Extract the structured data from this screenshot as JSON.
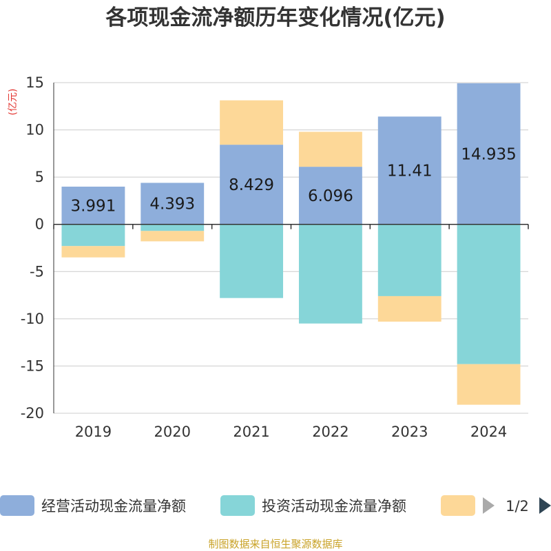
{
  "chart_data": {
    "type": "bar",
    "stacked": true,
    "title": "各项现金流净额历年变化情况(亿元)",
    "ylabel": "(亿元)",
    "xlabel": "",
    "categories": [
      "2019",
      "2020",
      "2021",
      "2022",
      "2023",
      "2024"
    ],
    "ylim": [
      -20,
      15
    ],
    "yticks": [
      15,
      10,
      5,
      0,
      -5,
      -10,
      -15,
      -20
    ],
    "series": [
      {
        "name": "经营活动现金流量净额",
        "color": "#8eaedb",
        "values": [
          3.991,
          4.393,
          8.429,
          6.096,
          11.41,
          14.935
        ],
        "labels": [
          "3.991",
          "4.393",
          "8.429",
          "6.096",
          "11.41",
          "14.935"
        ]
      },
      {
        "name": "投资活动现金流量净额",
        "color": "#86d5d8",
        "values": [
          -2.3,
          -0.7,
          -7.8,
          -10.5,
          -7.6,
          -14.8
        ]
      },
      {
        "name": "",
        "color": "#fdd898",
        "values": [
          -1.2,
          -1.1,
          4.7,
          3.7,
          -2.7,
          -4.3
        ]
      }
    ],
    "legend_page": "1/2",
    "source": "制图数据来自恒生聚源数据库"
  }
}
